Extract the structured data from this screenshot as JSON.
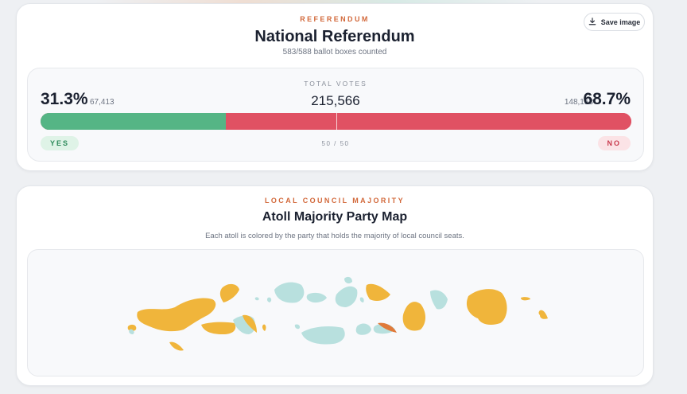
{
  "referendum": {
    "eyebrow": "REFERENDUM",
    "title": "National Referendum",
    "subtitle": "583/588 ballot boxes counted",
    "save_button": "Save image",
    "total_label": "TOTAL VOTES",
    "total_value": "215,566",
    "yes": {
      "percent": "31.3%",
      "count": "67,413",
      "label": "YES",
      "share": 0.313,
      "color": "#55b585"
    },
    "no": {
      "percent": "68.7%",
      "count": "148,153",
      "label": "NO",
      "share": 0.687,
      "color": "#e05163"
    },
    "boxes_text": "50 / 50"
  },
  "council": {
    "eyebrow": "LOCAL COUNCIL MAJORITY",
    "title": "Atoll Majority Party Map",
    "subtitle": "Each atoll is colored by the party that holds the majority of local council seats.",
    "colors": {
      "party_a": "#f0b53b",
      "party_b": "#b8e0de",
      "party_c": "#e07a3a"
    }
  },
  "icons": {
    "save": "download-icon"
  }
}
